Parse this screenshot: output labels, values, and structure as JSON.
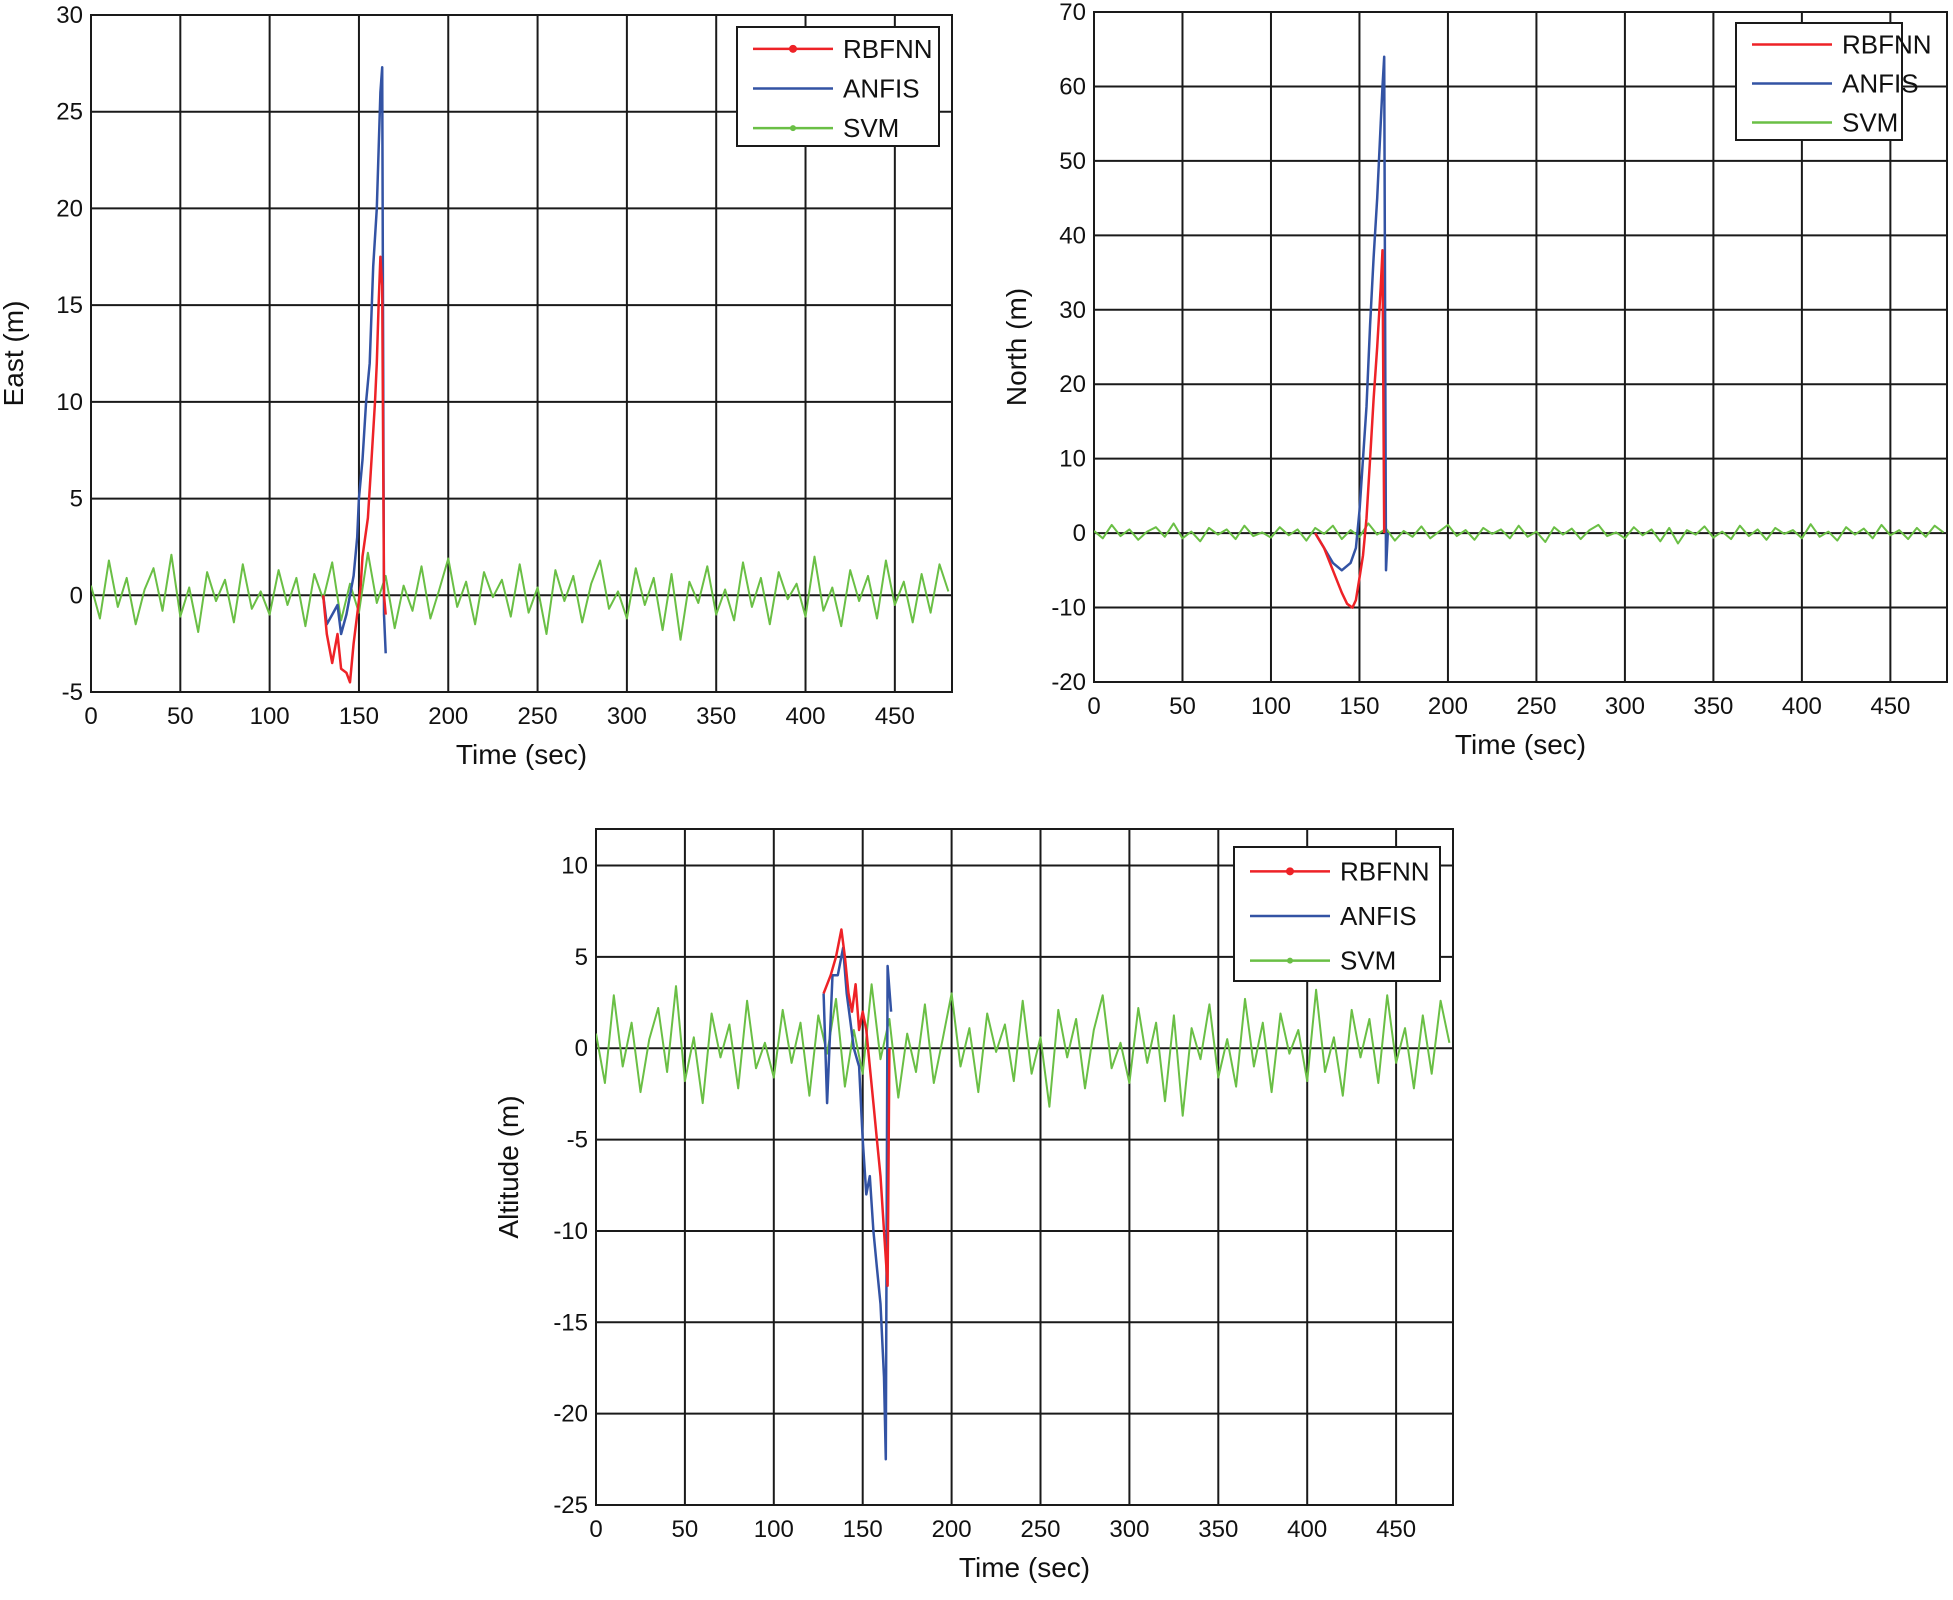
{
  "colors": {
    "RBFNN": "#ee2227",
    "ANFIS": "#3353a4",
    "SVM": "#6abf45",
    "grid": "#1a1a1a"
  },
  "chart_data": [
    {
      "type": "line",
      "xlabel": "Time (sec)",
      "ylabel": "East (m)",
      "xlim": [
        0,
        482
      ],
      "ylim": [
        -5,
        30
      ],
      "xticks": [
        0,
        50,
        100,
        150,
        200,
        250,
        300,
        350,
        400,
        450
      ],
      "yticks": [
        -5,
        0,
        5,
        10,
        15,
        20,
        25,
        30
      ],
      "grid": true,
      "legend": "top-right",
      "series": [
        {
          "name": "RBFNN",
          "x": [
            130,
            132,
            135,
            138,
            140,
            143,
            145,
            147,
            149,
            151,
            152,
            155,
            157,
            159,
            160,
            161,
            162,
            163,
            164,
            165
          ],
          "y": [
            0,
            -2,
            -3.5,
            -2,
            -3.8,
            -4,
            -4.5,
            -2.5,
            -1,
            0.5,
            2,
            4,
            7,
            10,
            12,
            15,
            17.5,
            16,
            0,
            -1
          ]
        },
        {
          "name": "ANFIS",
          "x": [
            130,
            132,
            135,
            138,
            140,
            143,
            145,
            147,
            149,
            150,
            152,
            154,
            156,
            158,
            160,
            161,
            162,
            163,
            164,
            165
          ],
          "y": [
            0,
            -1.5,
            -1,
            -0.5,
            -2,
            -1,
            0,
            1,
            3,
            5,
            7,
            10,
            12,
            17,
            20,
            23,
            26,
            27.3,
            -1,
            -3
          ]
        },
        {
          "name": "SVM",
          "x_start": 0,
          "x_step": 5,
          "y": [
            0.5,
            -1.2,
            1.8,
            -0.6,
            0.9,
            -1.5,
            0.3,
            1.4,
            -0.8,
            2.1,
            -1.1,
            0.4,
            -1.9,
            1.2,
            -0.3,
            0.8,
            -1.4,
            1.6,
            -0.7,
            0.2,
            -1.0,
            1.3,
            -0.5,
            0.9,
            -1.6,
            1.1,
            -0.2,
            1.7,
            -1.3,
            0.6,
            -0.9,
            2.2,
            -0.4,
            1.0,
            -1.7,
            0.5,
            -0.8,
            1.5,
            -1.2,
            0.3,
            1.9,
            -0.6,
            0.7,
            -1.5,
            1.2,
            -0.1,
            0.8,
            -1.1,
            1.6,
            -0.9,
            0.4,
            -2.0,
            1.3,
            -0.3,
            1.0,
            -1.4,
            0.6,
            1.8,
            -0.7,
            0.2,
            -1.2,
            1.4,
            -0.5,
            0.9,
            -1.8,
            1.1,
            -2.3,
            0.7,
            -0.4,
            1.5,
            -1.0,
            0.3,
            -1.3,
            1.7,
            -0.6,
            0.9,
            -1.5,
            1.2,
            -0.2,
            0.6,
            -1.1,
            2.0,
            -0.8,
            0.4,
            -1.6,
            1.3,
            -0.3,
            1.0,
            -1.2,
            1.8,
            -0.5,
            0.7,
            -1.4,
            1.1,
            -0.9,
            1.6,
            0.2
          ]
        }
      ]
    },
    {
      "type": "line",
      "xlabel": "Time (sec)",
      "ylabel": "North (m)",
      "xlim": [
        0,
        482
      ],
      "ylim": [
        -20,
        70
      ],
      "xticks": [
        0,
        50,
        100,
        150,
        200,
        250,
        300,
        350,
        400,
        450
      ],
      "yticks": [
        -20,
        -10,
        0,
        10,
        20,
        30,
        40,
        50,
        60,
        70
      ],
      "grid": true,
      "legend": "top-right",
      "series": [
        {
          "name": "RBFNN",
          "x": [
            125,
            130,
            135,
            140,
            143,
            146,
            148,
            150,
            152,
            154,
            156,
            158,
            160,
            162,
            163,
            164
          ],
          "y": [
            0,
            -2,
            -5,
            -8,
            -9.5,
            -10,
            -9,
            -6,
            -3,
            2,
            10,
            18,
            25,
            33,
            38,
            0
          ]
        },
        {
          "name": "ANFIS",
          "x": [
            125,
            130,
            135,
            140,
            145,
            148,
            150,
            152,
            154,
            156,
            158,
            160,
            162,
            163,
            164,
            165,
            166
          ],
          "y": [
            0,
            -2,
            -4,
            -5,
            -4,
            -2,
            3,
            10,
            17,
            28,
            37,
            45,
            55,
            60,
            64,
            -5,
            0
          ]
        },
        {
          "name": "SVM",
          "x_start": 0,
          "x_step": 5,
          "y": [
            0.3,
            -0.7,
            1.1,
            -0.4,
            0.5,
            -0.9,
            0.2,
            0.8,
            -0.5,
            1.3,
            -0.7,
            0.2,
            -1.1,
            0.7,
            -0.2,
            0.5,
            -0.8,
            1.0,
            -0.4,
            0.1,
            -0.6,
            0.8,
            -0.3,
            0.5,
            -1.0,
            0.7,
            -0.1,
            1.0,
            -0.8,
            0.4,
            -0.5,
            1.3,
            -0.2,
            0.6,
            -1.0,
            0.3,
            -0.5,
            0.9,
            -0.7,
            0.2,
            1.1,
            -0.4,
            0.4,
            -0.9,
            0.7,
            -0.1,
            0.5,
            -0.7,
            1.0,
            -0.5,
            0.2,
            -1.2,
            0.8,
            -0.2,
            0.6,
            -0.8,
            0.4,
            1.1,
            -0.4,
            0.1,
            -0.7,
            0.8,
            -0.3,
            0.5,
            -1.1,
            0.7,
            -1.4,
            0.4,
            -0.2,
            0.9,
            -0.6,
            0.2,
            -0.8,
            1.0,
            -0.4,
            0.5,
            -0.9,
            0.7,
            -0.1,
            0.4,
            -0.7,
            1.2,
            -0.5,
            0.2,
            -1.0,
            0.8,
            -0.2,
            0.6,
            -0.7,
            1.1,
            -0.3,
            0.4,
            -0.8,
            0.7,
            -0.5,
            1.0,
            0.1
          ]
        }
      ]
    },
    {
      "type": "line",
      "xlabel": "Time (sec)",
      "ylabel": "Altitude (m)",
      "xlim": [
        0,
        482
      ],
      "ylim": [
        -25,
        12
      ],
      "xticks": [
        0,
        50,
        100,
        150,
        200,
        250,
        300,
        350,
        400,
        450
      ],
      "yticks": [
        -25,
        -20,
        -15,
        -10,
        -5,
        0,
        5,
        10
      ],
      "grid": true,
      "legend": "top-right",
      "series": [
        {
          "name": "RBFNN",
          "x": [
            128,
            132,
            135,
            138,
            140,
            142,
            144,
            146,
            148,
            150,
            152,
            154,
            156,
            158,
            160,
            162,
            164,
            165
          ],
          "y": [
            3,
            4,
            5,
            6.5,
            5,
            3,
            2,
            3.5,
            1,
            2,
            1,
            -1,
            -3,
            -5,
            -7,
            -10,
            -13,
            0
          ]
        },
        {
          "name": "ANFIS",
          "x": [
            128,
            130,
            133,
            136,
            139,
            141,
            143,
            145,
            148,
            150,
            152,
            154,
            156,
            158,
            160,
            162,
            163,
            164,
            166
          ],
          "y": [
            3,
            -3,
            4,
            4,
            5.5,
            3,
            1.5,
            0,
            -1,
            -5,
            -8,
            -7,
            -10,
            -12,
            -14,
            -18,
            -22.5,
            4.5,
            2
          ]
        },
        {
          "name": "SVM",
          "x_start": 0,
          "x_step": 5,
          "y": [
            0.8,
            -1.9,
            2.9,
            -1.0,
            1.4,
            -2.4,
            0.5,
            2.2,
            -1.3,
            3.4,
            -1.8,
            0.6,
            -3.0,
            1.9,
            -0.5,
            1.3,
            -2.2,
            2.6,
            -1.1,
            0.3,
            -1.6,
            2.1,
            -0.8,
            1.4,
            -2.6,
            1.8,
            -0.3,
            2.7,
            -2.1,
            1.0,
            -1.4,
            3.5,
            -0.6,
            1.6,
            -2.7,
            0.8,
            -1.3,
            2.4,
            -1.9,
            0.5,
            3.0,
            -1.0,
            1.1,
            -2.4,
            1.9,
            -0.2,
            1.3,
            -1.8,
            2.6,
            -1.4,
            0.6,
            -3.2,
            2.1,
            -0.5,
            1.6,
            -2.2,
            1.0,
            2.9,
            -1.1,
            0.3,
            -1.9,
            2.2,
            -0.8,
            1.4,
            -2.9,
            1.8,
            -3.7,
            1.1,
            -0.6,
            2.4,
            -1.6,
            0.5,
            -2.1,
            2.7,
            -1.0,
            1.4,
            -2.4,
            1.9,
            -0.3,
            1.0,
            -1.8,
            3.2,
            -1.3,
            0.6,
            -2.6,
            2.1,
            -0.5,
            1.6,
            -1.9,
            2.9,
            -0.8,
            1.1,
            -2.2,
            1.8,
            -1.4,
            2.6,
            0.3
          ]
        }
      ]
    }
  ]
}
